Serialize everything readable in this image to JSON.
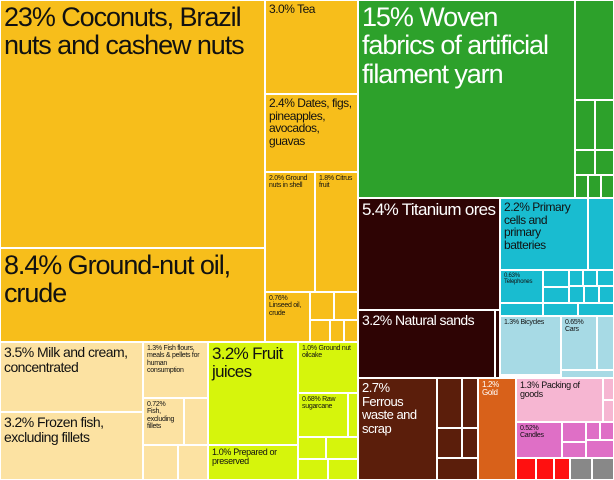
{
  "chart_data": {
    "type": "treemap",
    "items": [
      {
        "label": "23% Coconuts, Brazil nuts and cashew nuts",
        "value": 23,
        "color": "#F7BE1B"
      },
      {
        "label": "8.4% Ground-nut oil, crude",
        "value": 8.4,
        "color": "#F7BE1B"
      },
      {
        "label": "3.0% Tea",
        "value": 3.0,
        "color": "#F7BE1B"
      },
      {
        "label": "2.4% Dates, figs, pineapples, avocados, guavas",
        "value": 2.4,
        "color": "#F7BE1B"
      },
      {
        "label": "2.0% Ground nuts in shell",
        "value": 2.0,
        "color": "#F7BE1B"
      },
      {
        "label": "1.8% Citrus fruit",
        "value": 1.8,
        "color": "#F7BE1B"
      },
      {
        "label": "0.76% Linseed oil, crude",
        "value": 0.76,
        "color": "#F7BE1B"
      },
      {
        "label": "3.5% Milk and cream, concentrated",
        "value": 3.5,
        "color": "#FCE2A2"
      },
      {
        "label": "3.2% Frozen fish, excluding fillets",
        "value": 3.2,
        "color": "#FCE2A2"
      },
      {
        "label": "1.3% Fish flours, meals & pellets for human consumption",
        "value": 1.3,
        "color": "#FCE2A2"
      },
      {
        "label": "0.72% Fish, excluding fillets",
        "value": 0.72,
        "color": "#FCE2A2"
      },
      {
        "label": "3.2% Fruit juices",
        "value": 3.2,
        "color": "#D6F50C"
      },
      {
        "label": "1.0% Prepared or preserved",
        "value": 1.0,
        "color": "#D6F50C"
      },
      {
        "label": "1.0% Ground nut oilcake",
        "value": 1.0,
        "color": "#D6F50C"
      },
      {
        "label": "0.68% Raw sugarcane",
        "value": 0.68,
        "color": "#D6F50C"
      },
      {
        "label": "15% Woven fabrics of artificial filament yarn",
        "value": 15,
        "color": "#2DA12B"
      },
      {
        "label": "5.4% Titanium ores",
        "value": 5.4,
        "color": "#2E0404"
      },
      {
        "label": "3.2% Natural sands",
        "value": 3.2,
        "color": "#2E0404"
      },
      {
        "label": "2.7% Ferrous waste and scrap",
        "value": 2.7,
        "color": "#5B1E0B"
      },
      {
        "label": "1.2% Gold",
        "value": 1.2,
        "color": "#D8611A"
      },
      {
        "label": "2.2% Primary cells and primary batteries",
        "value": 2.2,
        "color": "#19BCD0"
      },
      {
        "label": "0.63% Telephones",
        "value": 0.63,
        "color": "#19BCD0"
      },
      {
        "label": "1.3% Bicycles",
        "value": 1.3,
        "color": "#A7DAE5"
      },
      {
        "label": "0.65% Cars",
        "value": 0.65,
        "color": "#A7DAE5"
      },
      {
        "label": "1.3% Packing of goods",
        "value": 1.3,
        "color": "#F6B6D2"
      },
      {
        "label": "0.52% Candles",
        "value": 0.52,
        "color": "#DF6FC6"
      }
    ]
  }
}
